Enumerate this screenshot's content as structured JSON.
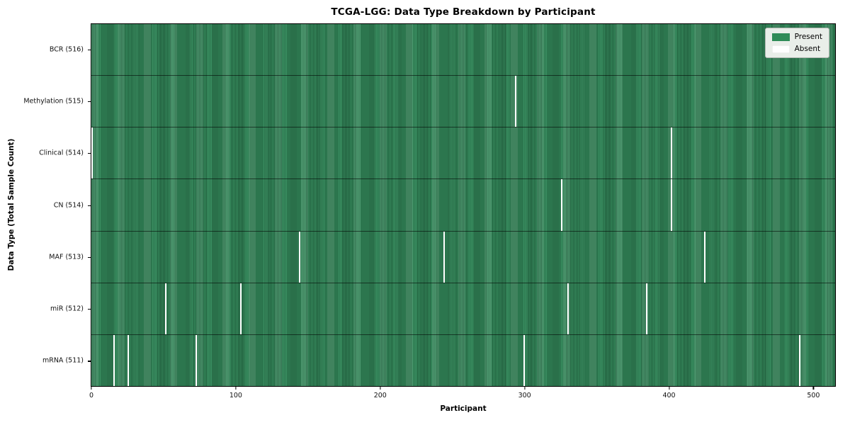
{
  "title": "TCGA-LGG: Data Type Breakdown by Participant",
  "colors": {
    "present": "#2E8B57",
    "present_edge": "#1E5C3A",
    "present_light": "#3B9163",
    "absent": "#FFFFFF",
    "row_divider": "#1C1C1C",
    "axes_border": "#000000",
    "legend_bg": "#E9EEE9",
    "figure_bg": "#FFFFFF"
  },
  "legend": {
    "present_label": "Present",
    "absent_label": "Absent"
  },
  "chart_data": {
    "type": "heatmap",
    "title": "TCGA-LGG: Data Type Breakdown by Participant",
    "xlabel": "Participant",
    "ylabel": "Data Type (Total Sample Count)",
    "n_participants": 516,
    "xlim": [
      -0.5,
      515.5
    ],
    "x_ticks": [
      0,
      100,
      200,
      300,
      400,
      500
    ],
    "grid": false,
    "legend_position": "upper right",
    "legend": [
      {
        "label": "Present",
        "color": "#2E8B57"
      },
      {
        "label": "Absent",
        "color": "#FFFFFF"
      }
    ],
    "rows": [
      {
        "key": "bcr",
        "data_type": "BCR",
        "label": "BCR (516)",
        "present_count": 516,
        "absent_participants": []
      },
      {
        "key": "methylation",
        "data_type": "Methylation",
        "label": "Methylation (515)",
        "present_count": 515,
        "absent_participants": [
          294
        ]
      },
      {
        "key": "clinical",
        "data_type": "Clinical",
        "label": "Clinical (514)",
        "present_count": 514,
        "absent_participants": [
          0,
          402
        ]
      },
      {
        "key": "cn",
        "data_type": "CN",
        "label": "CN (514)",
        "present_count": 514,
        "absent_participants": [
          326,
          402
        ]
      },
      {
        "key": "maf",
        "data_type": "MAF",
        "label": "MAF (513)",
        "present_count": 513,
        "absent_participants": [
          144,
          244,
          425
        ]
      },
      {
        "key": "mir",
        "data_type": "miR",
        "label": "miR (512)",
        "present_count": 512,
        "absent_participants": [
          51,
          103,
          330,
          385
        ]
      },
      {
        "key": "mrna",
        "data_type": "mRNA",
        "label": "mRNA (511)",
        "present_count": 511,
        "absent_participants": [
          15,
          25,
          72,
          300,
          491
        ]
      }
    ]
  }
}
